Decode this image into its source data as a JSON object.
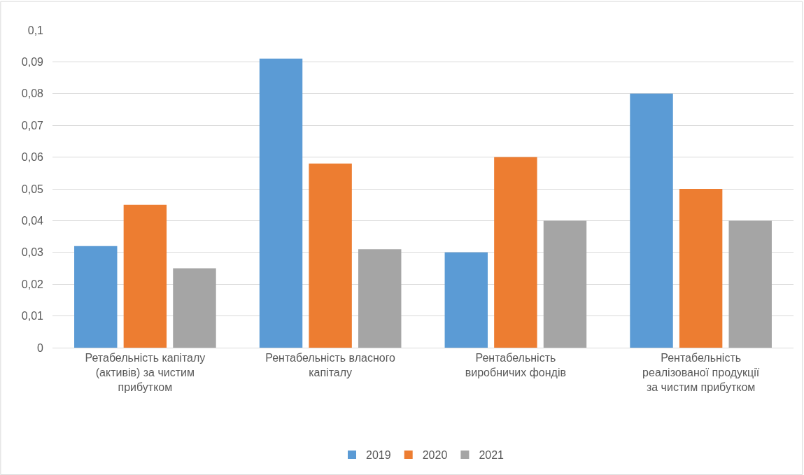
{
  "chart_data": {
    "type": "bar",
    "categories": [
      "Ретабельність капіталу (активів) за чистим прибутком",
      "Рентабельність власного капіталу",
      "Рентабельність виробничих фондів",
      "Рентабельність реалізованої продукції за чистим прибутком"
    ],
    "series": [
      {
        "name": "2019",
        "color": "#5b9bd5",
        "values": [
          0.032,
          0.091,
          0.03,
          0.08
        ]
      },
      {
        "name": "2020",
        "color": "#ed7d31",
        "values": [
          0.045,
          0.058,
          0.06,
          0.05
        ]
      },
      {
        "name": "2021",
        "color": "#a5a5a5",
        "values": [
          0.025,
          0.031,
          0.04,
          0.04
        ]
      }
    ],
    "ylim": [
      0,
      0.1
    ],
    "yticks": [
      {
        "value": 0,
        "label": "0"
      },
      {
        "value": 0.01,
        "label": "0,01"
      },
      {
        "value": 0.02,
        "label": "0,02"
      },
      {
        "value": 0.03,
        "label": "0,03"
      },
      {
        "value": 0.04,
        "label": "0,04"
      },
      {
        "value": 0.05,
        "label": "0,05"
      },
      {
        "value": 0.06,
        "label": "0,06"
      },
      {
        "value": 0.07,
        "label": "0,07"
      },
      {
        "value": 0.08,
        "label": "0,08"
      },
      {
        "value": 0.09,
        "label": "0,09"
      },
      {
        "value": 0.1,
        "label": "0,1"
      }
    ],
    "grid": "y",
    "legend": "bottom"
  }
}
